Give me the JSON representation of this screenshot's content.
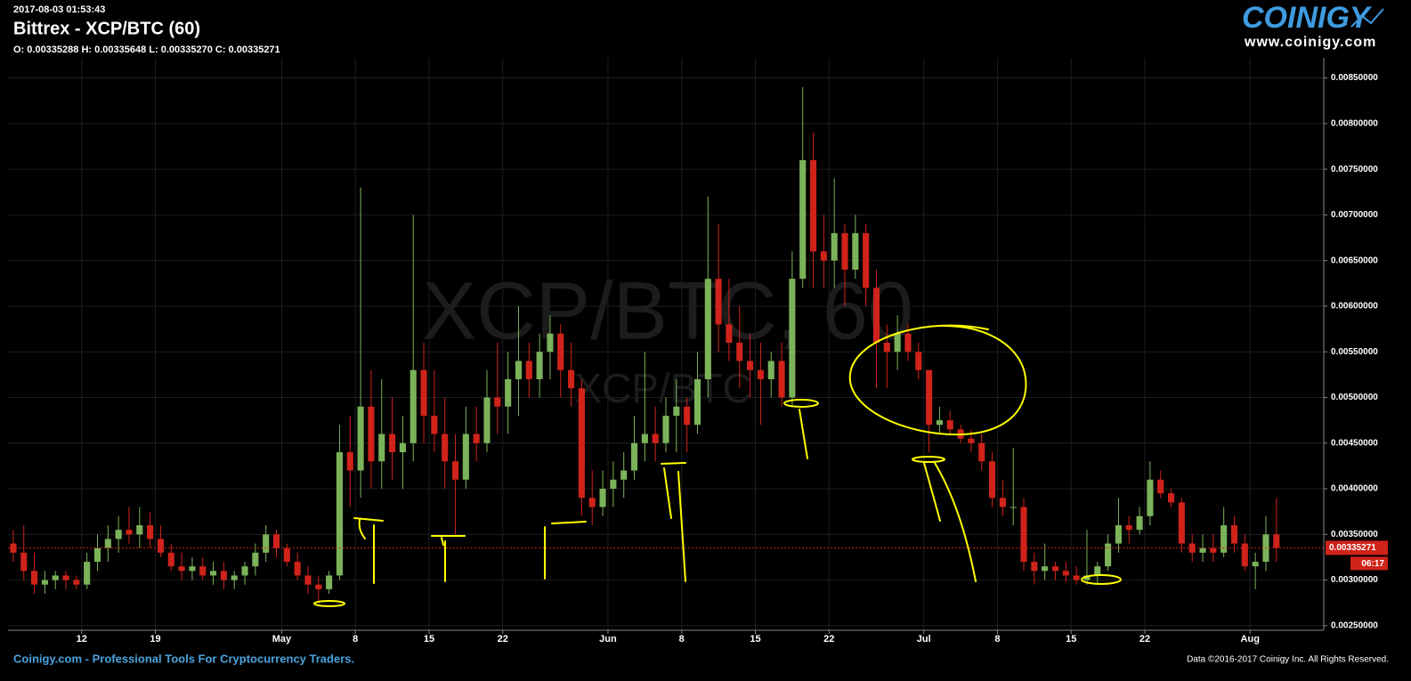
{
  "header": {
    "timestamp": "2017-08-03 01:53:43",
    "title": "Bittrex - XCP/BTC (60)",
    "ohlc": "O: 0.00335288 H: 0.00335648 L: 0.00335270 C: 0.00335271"
  },
  "logo": {
    "brand": "COINIGY",
    "url": "www.coinigy.com"
  },
  "footer": {
    "tagline": "Coinigy.com - Professional Tools For Cryptocurrency Traders.",
    "copyright": "Data ©2016-2017 Coinigy Inc. All Rights Reserved."
  },
  "chart_data": {
    "type": "candlestick",
    "watermark": "XCP/BTC, 60",
    "watermark_sub": "XCP/BTC",
    "up_color": "#7bb35a",
    "down_color": "#d0231a",
    "grid": true,
    "ylim": [
      0.00245,
      0.00872
    ],
    "yticks": [
      {
        "value": 0.0025,
        "label": "0.00250000"
      },
      {
        "value": 0.003,
        "label": "0.00300000"
      },
      {
        "value": 0.0035,
        "label": "0.00350000"
      },
      {
        "value": 0.004,
        "label": "0.00400000"
      },
      {
        "value": 0.0045,
        "label": "0.00450000"
      },
      {
        "value": 0.005,
        "label": "0.00500000"
      },
      {
        "value": 0.0055,
        "label": "0.00550000"
      },
      {
        "value": 0.006,
        "label": "0.00600000"
      },
      {
        "value": 0.0065,
        "label": "0.00650000"
      },
      {
        "value": 0.007,
        "label": "0.00700000"
      },
      {
        "value": 0.0075,
        "label": "0.00750000"
      },
      {
        "value": 0.008,
        "label": "0.00800000"
      },
      {
        "value": 0.0085,
        "label": "0.00850000"
      }
    ],
    "last_price": {
      "value": 0.00335271,
      "label": "0.00335271"
    },
    "last_time": "06:17",
    "categories": [
      null,
      null,
      null,
      null,
      null,
      null,
      null,
      "12",
      null,
      null,
      null,
      null,
      null,
      null,
      "19",
      null,
      null,
      null,
      null,
      null,
      null,
      null,
      null,
      null,
      null,
      null,
      "May",
      null,
      null,
      null,
      null,
      null,
      null,
      "8",
      null,
      null,
      null,
      null,
      null,
      null,
      "15",
      null,
      null,
      null,
      null,
      null,
      null,
      "22",
      null,
      null,
      null,
      null,
      null,
      null,
      null,
      null,
      null,
      "Jun",
      null,
      null,
      null,
      null,
      null,
      null,
      "8",
      null,
      null,
      null,
      null,
      null,
      null,
      "15",
      null,
      null,
      null,
      null,
      null,
      null,
      "22",
      null,
      null,
      null,
      null,
      null,
      null,
      null,
      null,
      "Jul",
      null,
      null,
      null,
      null,
      null,
      null,
      "8",
      null,
      null,
      null,
      null,
      null,
      null,
      "15",
      null,
      null,
      null,
      null,
      null,
      null,
      "22",
      null,
      null,
      null,
      null,
      null,
      null,
      null,
      null,
      null,
      "Aug",
      null,
      null,
      null,
      null,
      null,
      null
    ],
    "open": [
      0.0034,
      0.0033,
      0.0031,
      0.00295,
      0.003,
      0.00305,
      0.003,
      0.00295,
      0.0032,
      0.00335,
      0.00345,
      0.00355,
      0.0035,
      0.0036,
      0.00345,
      0.0033,
      0.00315,
      0.0031,
      0.00315,
      0.00305,
      0.0031,
      0.003,
      0.00305,
      0.00315,
      0.0033,
      0.0035,
      0.00335,
      0.0032,
      0.00305,
      0.00295,
      0.0029,
      0.00305,
      0.0044,
      0.0042,
      0.0049,
      0.0043,
      0.0046,
      0.0044,
      0.0045,
      0.0053,
      0.0048,
      0.0046,
      0.0043,
      0.0041,
      0.0046,
      0.0045,
      0.005,
      0.0049,
      0.0052,
      0.0054,
      0.0052,
      0.0055,
      0.0057,
      0.0053,
      0.0051,
      0.0039,
      0.0038,
      0.004,
      0.0041,
      0.0042,
      0.0045,
      0.0046,
      0.0045,
      0.0048,
      0.0049,
      0.0047,
      0.0052,
      0.0063,
      0.0058,
      0.0056,
      0.0054,
      0.0053,
      0.0052,
      0.0054,
      0.005,
      0.0063,
      0.0076,
      0.0066,
      0.0065,
      0.0068,
      0.0064,
      0.0068,
      0.0062,
      0.0056,
      0.0055,
      0.0057,
      0.0055,
      0.0053,
      0.0047,
      0.00475,
      0.00465,
      0.00455,
      0.0045,
      0.0043,
      0.0039,
      0.0038,
      0.0038,
      0.0032,
      0.0031,
      0.00315,
      0.0031,
      0.00305,
      0.003,
      0.00305,
      0.00315,
      0.0034,
      0.0036,
      0.00355,
      0.0037,
      0.0041,
      0.00395,
      0.00385,
      0.0034,
      0.0033,
      0.00335,
      0.0033,
      0.0036,
      0.0034,
      0.00315,
      0.0032,
      0.0035,
      null,
      null,
      null,
      null
    ],
    "high": [
      0.00355,
      0.0036,
      0.0033,
      0.0031,
      0.0031,
      0.0031,
      0.00305,
      0.0033,
      0.0035,
      0.0036,
      0.0037,
      0.0038,
      0.0038,
      0.00375,
      0.0036,
      0.0034,
      0.0033,
      0.00325,
      0.00325,
      0.0032,
      0.0032,
      0.0031,
      0.0032,
      0.0034,
      0.0036,
      0.00355,
      0.0034,
      0.0033,
      0.00315,
      0.00305,
      0.0031,
      0.0047,
      0.0048,
      0.0073,
      0.0053,
      0.0052,
      0.005,
      0.0048,
      0.007,
      0.0056,
      0.0053,
      0.005,
      0.0046,
      0.0049,
      0.0049,
      0.0053,
      0.0056,
      0.0055,
      0.006,
      0.0056,
      0.0057,
      0.0059,
      0.0058,
      0.0056,
      0.0052,
      0.0042,
      0.0042,
      0.0043,
      0.0044,
      0.0048,
      0.0055,
      0.0049,
      0.005,
      0.0052,
      0.005,
      0.0055,
      0.0072,
      0.0069,
      0.0063,
      0.006,
      0.0057,
      0.0056,
      0.0055,
      0.0056,
      0.0066,
      0.0084,
      0.0079,
      0.007,
      0.0074,
      0.0069,
      0.007,
      0.0069,
      0.0064,
      0.0058,
      0.0059,
      0.0058,
      0.0056,
      0.0053,
      0.0049,
      0.00485,
      0.0047,
      0.00465,
      0.0046,
      0.0044,
      0.0041,
      0.00445,
      0.0039,
      0.0033,
      0.0034,
      0.0032,
      0.0032,
      0.00315,
      0.00355,
      0.0032,
      0.0035,
      0.0039,
      0.0037,
      0.0038,
      0.0043,
      0.0042,
      0.004,
      0.0039,
      0.0035,
      0.0035,
      0.0035,
      0.0038,
      0.0037,
      0.0035,
      0.0033,
      0.0037,
      0.0039,
      null,
      null,
      null,
      null
    ],
    "low": [
      0.0032,
      0.003,
      0.00285,
      0.00285,
      0.0029,
      0.0029,
      0.0029,
      0.0029,
      0.0031,
      0.0032,
      0.0033,
      0.0034,
      0.00335,
      0.00335,
      0.00325,
      0.0031,
      0.003,
      0.003,
      0.003,
      0.00295,
      0.0029,
      0.0029,
      0.00295,
      0.00305,
      0.0032,
      0.00325,
      0.00315,
      0.003,
      0.00285,
      0.00275,
      0.00285,
      0.003,
      0.0038,
      0.0039,
      0.004,
      0.004,
      0.0041,
      0.004,
      0.0043,
      0.0045,
      0.0044,
      0.004,
      0.0035,
      0.004,
      0.0043,
      0.0044,
      0.0046,
      0.0046,
      0.0048,
      0.005,
      0.005,
      0.0052,
      0.005,
      0.0049,
      0.0037,
      0.0036,
      0.0037,
      0.0038,
      0.0039,
      0.0041,
      0.0043,
      0.0043,
      0.0044,
      0.0044,
      0.0044,
      0.0046,
      0.005,
      0.0055,
      0.0054,
      0.0051,
      0.005,
      0.0047,
      0.005,
      0.0049,
      0.0049,
      0.0062,
      0.0062,
      0.0062,
      0.0062,
      0.006,
      0.0063,
      0.006,
      0.0051,
      0.0051,
      0.0053,
      0.0054,
      0.0052,
      0.0044,
      0.0046,
      0.0046,
      0.0045,
      0.0044,
      0.0042,
      0.0038,
      0.0037,
      0.0036,
      0.0031,
      0.00295,
      0.003,
      0.003,
      0.00298,
      0.00295,
      0.00295,
      0.00295,
      0.0031,
      0.0033,
      0.0034,
      0.0035,
      0.0036,
      0.0039,
      0.0038,
      0.0033,
      0.0032,
      0.0032,
      0.0032,
      0.00325,
      0.0033,
      0.0031,
      0.0029,
      0.0031,
      0.0032,
      null,
      null,
      null,
      null
    ],
    "close": [
      0.0033,
      0.0031,
      0.00295,
      0.003,
      0.00305,
      0.003,
      0.00295,
      0.0032,
      0.00335,
      0.00345,
      0.00355,
      0.0035,
      0.0036,
      0.00345,
      0.0033,
      0.00315,
      0.0031,
      0.00315,
      0.00305,
      0.0031,
      0.003,
      0.00305,
      0.00315,
      0.0033,
      0.0035,
      0.00335,
      0.0032,
      0.00305,
      0.00295,
      0.0029,
      0.00305,
      0.0044,
      0.0042,
      0.0049,
      0.0043,
      0.0046,
      0.0044,
      0.0045,
      0.0053,
      0.0048,
      0.0046,
      0.0043,
      0.0041,
      0.0046,
      0.0045,
      0.005,
      0.0049,
      0.0052,
      0.0054,
      0.0052,
      0.0055,
      0.0057,
      0.0053,
      0.0051,
      0.0039,
      0.0038,
      0.004,
      0.0041,
      0.0042,
      0.0045,
      0.0046,
      0.0045,
      0.0048,
      0.0049,
      0.0047,
      0.0052,
      0.0063,
      0.0058,
      0.0056,
      0.0054,
      0.0053,
      0.0052,
      0.0054,
      0.005,
      0.0063,
      0.0076,
      0.0066,
      0.0065,
      0.0068,
      0.0064,
      0.0068,
      0.0062,
      0.0056,
      0.0055,
      0.0057,
      0.0055,
      0.0053,
      0.0047,
      0.00475,
      0.00465,
      0.00455,
      0.0045,
      0.0043,
      0.0039,
      0.0038,
      0.0038,
      0.0032,
      0.0031,
      0.00315,
      0.0031,
      0.00305,
      0.003,
      0.00305,
      0.00315,
      0.0034,
      0.0036,
      0.00355,
      0.0037,
      0.0041,
      0.00395,
      0.00385,
      0.0034,
      0.0033,
      0.00335,
      0.0033,
      0.0036,
      0.0034,
      0.00315,
      0.0032,
      0.0035,
      0.00335271,
      null,
      null,
      null,
      null
    ]
  }
}
